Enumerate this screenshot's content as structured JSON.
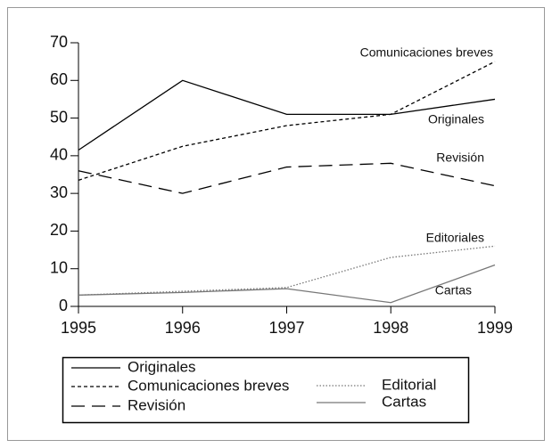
{
  "chart_data": {
    "type": "line",
    "x": [
      1995,
      1996,
      1997,
      1998,
      1999
    ],
    "xlim": [
      1995,
      1999
    ],
    "xticks": [
      1995,
      1996,
      1997,
      1998,
      1999
    ],
    "ylim": [
      0,
      70
    ],
    "yticks": [
      0,
      10,
      20,
      30,
      40,
      50,
      60,
      70
    ],
    "series": [
      {
        "name": "Originales",
        "color": "#000000",
        "dash": "solid",
        "values": [
          41.5,
          60,
          51,
          51,
          55
        ]
      },
      {
        "name": "Comunicaciones breves",
        "color": "#000000",
        "dash": "short",
        "values": [
          33.5,
          42.5,
          48,
          51,
          65
        ]
      },
      {
        "name": "Revisión",
        "color": "#000000",
        "dash": "long",
        "values": [
          36,
          30,
          37,
          38,
          32
        ]
      },
      {
        "name": "Editorial",
        "color": "#777777",
        "dash": "dotted",
        "values": [
          3,
          4,
          5,
          13,
          16
        ]
      },
      {
        "name": "Cartas",
        "color": "#777777",
        "dash": "solid",
        "values": [
          3,
          3.7,
          4.7,
          1,
          11
        ]
      }
    ],
    "annotations": [
      "Comunicaciones breves",
      "Originales",
      "Revisión",
      "Editoriales",
      "Cartas"
    ],
    "legend": "bottom"
  }
}
